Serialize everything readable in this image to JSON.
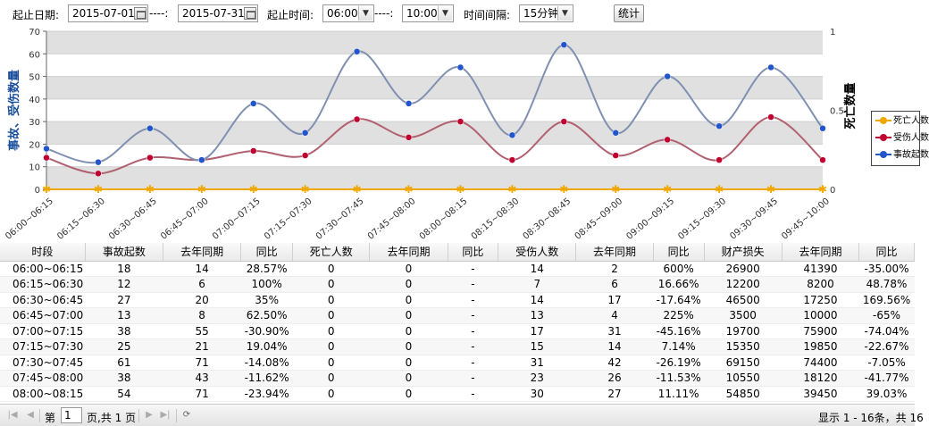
{
  "toolbar": {
    "start_date_label": "起止日期:",
    "start_date": "2015-07-01",
    "date_sep": "----:",
    "end_date": "2015-07-31",
    "start_time_label": "起止时间:",
    "start_time": "06:00",
    "time_sep": "----:",
    "end_time": "10:00",
    "interval_label": "时间间隔:",
    "interval": "15分钟",
    "stats_button": "统计"
  },
  "chart_data": {
    "type": "line",
    "categories": [
      "06:00~06:15",
      "06:15~06:30",
      "06:30~06:45",
      "06:45~07:00",
      "07:00~07:15",
      "07:15~07:30",
      "07:30~07:45",
      "07:45~08:00",
      "08:00~08:15",
      "08:15~08:30",
      "08:30~08:45",
      "08:45~09:00",
      "09:00~09:15",
      "09:15~09:30",
      "09:30~09:45",
      "09:45~10:00"
    ],
    "ylabel": "事故、受伤数量",
    "y2label": "死亡数量",
    "ylim": [
      0,
      70
    ],
    "y2lim": [
      0,
      1
    ],
    "yticks": [
      "0",
      "10",
      "20",
      "30",
      "40",
      "50",
      "60",
      "70"
    ],
    "y2ticks": [
      "0",
      "0.5",
      "1"
    ],
    "grid": true,
    "legend_position": "right",
    "series": [
      {
        "name": "死亡人数",
        "axis": "right",
        "color": "#f0a800",
        "values": [
          0,
          0,
          0,
          0,
          0,
          0,
          0,
          0,
          0,
          0,
          0,
          0,
          0,
          0,
          0,
          0
        ]
      },
      {
        "name": "受伤人数",
        "axis": "left",
        "color": "#c00030",
        "values": [
          14,
          7,
          14,
          13,
          17,
          15,
          31,
          23,
          30,
          13,
          30,
          15,
          22,
          13,
          32,
          13
        ]
      },
      {
        "name": "事故起数",
        "axis": "left",
        "color": "#2255cc",
        "values": [
          18,
          12,
          27,
          13,
          38,
          25,
          61,
          38,
          54,
          24,
          64,
          25,
          50,
          28,
          54,
          27
        ]
      }
    ]
  },
  "table": {
    "headers": [
      "时段",
      "事故起数",
      "去年同期",
      "同比",
      "死亡人数",
      "去年同期",
      "同比",
      "受伤人数",
      "去年同期",
      "同比",
      "财产损失",
      "去年同期",
      "同比"
    ],
    "rows": [
      [
        "06:00~06:15",
        "18",
        "14",
        "28.57%",
        "0",
        "0",
        "-",
        "14",
        "2",
        "600%",
        "26900",
        "41390",
        "-35.00%"
      ],
      [
        "06:15~06:30",
        "12",
        "6",
        "100%",
        "0",
        "0",
        "-",
        "7",
        "6",
        "16.66%",
        "12200",
        "8200",
        "48.78%"
      ],
      [
        "06:30~06:45",
        "27",
        "20",
        "35%",
        "0",
        "0",
        "-",
        "14",
        "17",
        "-17.64%",
        "46500",
        "17250",
        "169.56%"
      ],
      [
        "06:45~07:00",
        "13",
        "8",
        "62.50%",
        "0",
        "0",
        "-",
        "13",
        "4",
        "225%",
        "3500",
        "10000",
        "-65%"
      ],
      [
        "07:00~07:15",
        "38",
        "55",
        "-30.90%",
        "0",
        "0",
        "-",
        "17",
        "31",
        "-45.16%",
        "19700",
        "75900",
        "-74.04%"
      ],
      [
        "07:15~07:30",
        "25",
        "21",
        "19.04%",
        "0",
        "0",
        "-",
        "15",
        "14",
        "7.14%",
        "15350",
        "19850",
        "-22.67%"
      ],
      [
        "07:30~07:45",
        "61",
        "71",
        "-14.08%",
        "0",
        "0",
        "-",
        "31",
        "42",
        "-26.19%",
        "69150",
        "74400",
        "-7.05%"
      ],
      [
        "07:45~08:00",
        "38",
        "43",
        "-11.62%",
        "0",
        "0",
        "-",
        "23",
        "26",
        "-11.53%",
        "10550",
        "18120",
        "-41.77%"
      ],
      [
        "08:00~08:15",
        "54",
        "71",
        "-23.94%",
        "0",
        "0",
        "-",
        "30",
        "27",
        "11.11%",
        "54850",
        "39450",
        "39.03%"
      ]
    ]
  },
  "pager": {
    "page_label": "第",
    "page_value": "1",
    "page_total": "页,共 1 页",
    "summary": "显示 1 - 16条，共 16"
  }
}
